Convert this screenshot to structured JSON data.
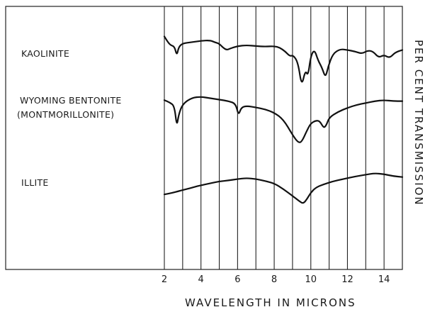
{
  "chart_data": {
    "type": "line",
    "xlabel": "WAVELENGTH IN MICRONS",
    "ylabel": "PER CENT TRANSMISSION",
    "xlim": [
      2,
      15
    ],
    "x_ticks": [
      "2",
      "4",
      "6",
      "8",
      "10",
      "12",
      "14"
    ],
    "grid": "vertical lines at integer microns",
    "series": [
      {
        "name": "KAOLINITE",
        "points": [
          [
            2.0,
            0.42
          ],
          [
            2.3,
            0.24
          ],
          [
            2.55,
            0.22
          ],
          [
            2.68,
            0.02
          ],
          [
            2.78,
            0.2
          ],
          [
            3.0,
            0.28
          ],
          [
            3.5,
            0.3
          ],
          [
            4.0,
            0.33
          ],
          [
            4.5,
            0.34
          ],
          [
            4.75,
            0.3
          ],
          [
            5.0,
            0.27
          ],
          [
            5.2,
            0.19
          ],
          [
            5.4,
            0.14
          ],
          [
            5.6,
            0.17
          ],
          [
            6.0,
            0.22
          ],
          [
            6.5,
            0.24
          ],
          [
            7.0,
            0.22
          ],
          [
            7.5,
            0.21
          ],
          [
            8.0,
            0.22
          ],
          [
            8.3,
            0.19
          ],
          [
            8.6,
            0.11
          ],
          [
            8.85,
            0.01
          ],
          [
            9.05,
            0.03
          ],
          [
            9.3,
            -0.12
          ],
          [
            9.5,
            -0.62
          ],
          [
            9.7,
            -0.28
          ],
          [
            9.85,
            -0.4
          ],
          [
            10.0,
            0.02
          ],
          [
            10.2,
            0.15
          ],
          [
            10.4,
            -0.08
          ],
          [
            10.6,
            -0.22
          ],
          [
            10.8,
            -0.44
          ],
          [
            10.95,
            -0.2
          ],
          [
            11.2,
            0.06
          ],
          [
            11.6,
            0.16
          ],
          [
            12.0,
            0.14
          ],
          [
            12.4,
            0.11
          ],
          [
            12.8,
            0.06
          ],
          [
            13.1,
            0.13
          ],
          [
            13.4,
            0.11
          ],
          [
            13.7,
            -0.02
          ],
          [
            14.0,
            0.04
          ],
          [
            14.3,
            -0.03
          ],
          [
            14.6,
            0.09
          ],
          [
            15.0,
            0.14
          ]
        ]
      },
      {
        "name": "WYOMING BENTONITE (MONTMORILLONITE)",
        "points": [
          [
            2.0,
            0.1
          ],
          [
            2.3,
            0.05
          ],
          [
            2.55,
            -0.02
          ],
          [
            2.68,
            -0.45
          ],
          [
            2.78,
            -0.2
          ],
          [
            3.0,
            0.02
          ],
          [
            3.5,
            0.15
          ],
          [
            4.0,
            0.17
          ],
          [
            4.5,
            0.14
          ],
          [
            5.0,
            0.11
          ],
          [
            5.5,
            0.08
          ],
          [
            5.9,
            0.03
          ],
          [
            6.05,
            -0.22
          ],
          [
            6.2,
            -0.05
          ],
          [
            6.5,
            -0.02
          ],
          [
            7.0,
            -0.05
          ],
          [
            7.5,
            -0.09
          ],
          [
            8.0,
            -0.16
          ],
          [
            8.5,
            -0.3
          ],
          [
            9.0,
            -0.62
          ],
          [
            9.3,
            -0.78
          ],
          [
            9.5,
            -0.77
          ],
          [
            9.8,
            -0.52
          ],
          [
            10.0,
            -0.38
          ],
          [
            10.3,
            -0.32
          ],
          [
            10.5,
            -0.34
          ],
          [
            10.7,
            -0.48
          ],
          [
            10.85,
            -0.42
          ],
          [
            11.0,
            -0.26
          ],
          [
            11.5,
            -0.14
          ],
          [
            12.0,
            -0.06
          ],
          [
            12.5,
            0.0
          ],
          [
            13.0,
            0.04
          ],
          [
            13.5,
            0.08
          ],
          [
            14.0,
            0.1
          ],
          [
            14.5,
            0.08
          ],
          [
            15.0,
            0.08
          ]
        ]
      },
      {
        "name": "ILLITE",
        "points": [
          [
            2.0,
            -0.15
          ],
          [
            2.4,
            -0.12
          ],
          [
            2.8,
            -0.08
          ],
          [
            3.2,
            -0.04
          ],
          [
            3.6,
            0.0
          ],
          [
            4.0,
            0.04
          ],
          [
            4.5,
            0.08
          ],
          [
            5.0,
            0.12
          ],
          [
            5.5,
            0.14
          ],
          [
            6.0,
            0.17
          ],
          [
            6.5,
            0.19
          ],
          [
            7.0,
            0.17
          ],
          [
            7.5,
            0.13
          ],
          [
            8.0,
            0.08
          ],
          [
            8.5,
            -0.04
          ],
          [
            9.0,
            -0.18
          ],
          [
            9.4,
            -0.3
          ],
          [
            9.6,
            -0.34
          ],
          [
            9.8,
            -0.24
          ],
          [
            10.0,
            -0.11
          ],
          [
            10.3,
            0.0
          ],
          [
            10.7,
            0.06
          ],
          [
            11.2,
            0.12
          ],
          [
            11.8,
            0.17
          ],
          [
            12.4,
            0.22
          ],
          [
            13.0,
            0.26
          ],
          [
            13.5,
            0.29
          ],
          [
            14.0,
            0.27
          ],
          [
            14.5,
            0.23
          ],
          [
            15.0,
            0.21
          ]
        ]
      }
    ]
  }
}
